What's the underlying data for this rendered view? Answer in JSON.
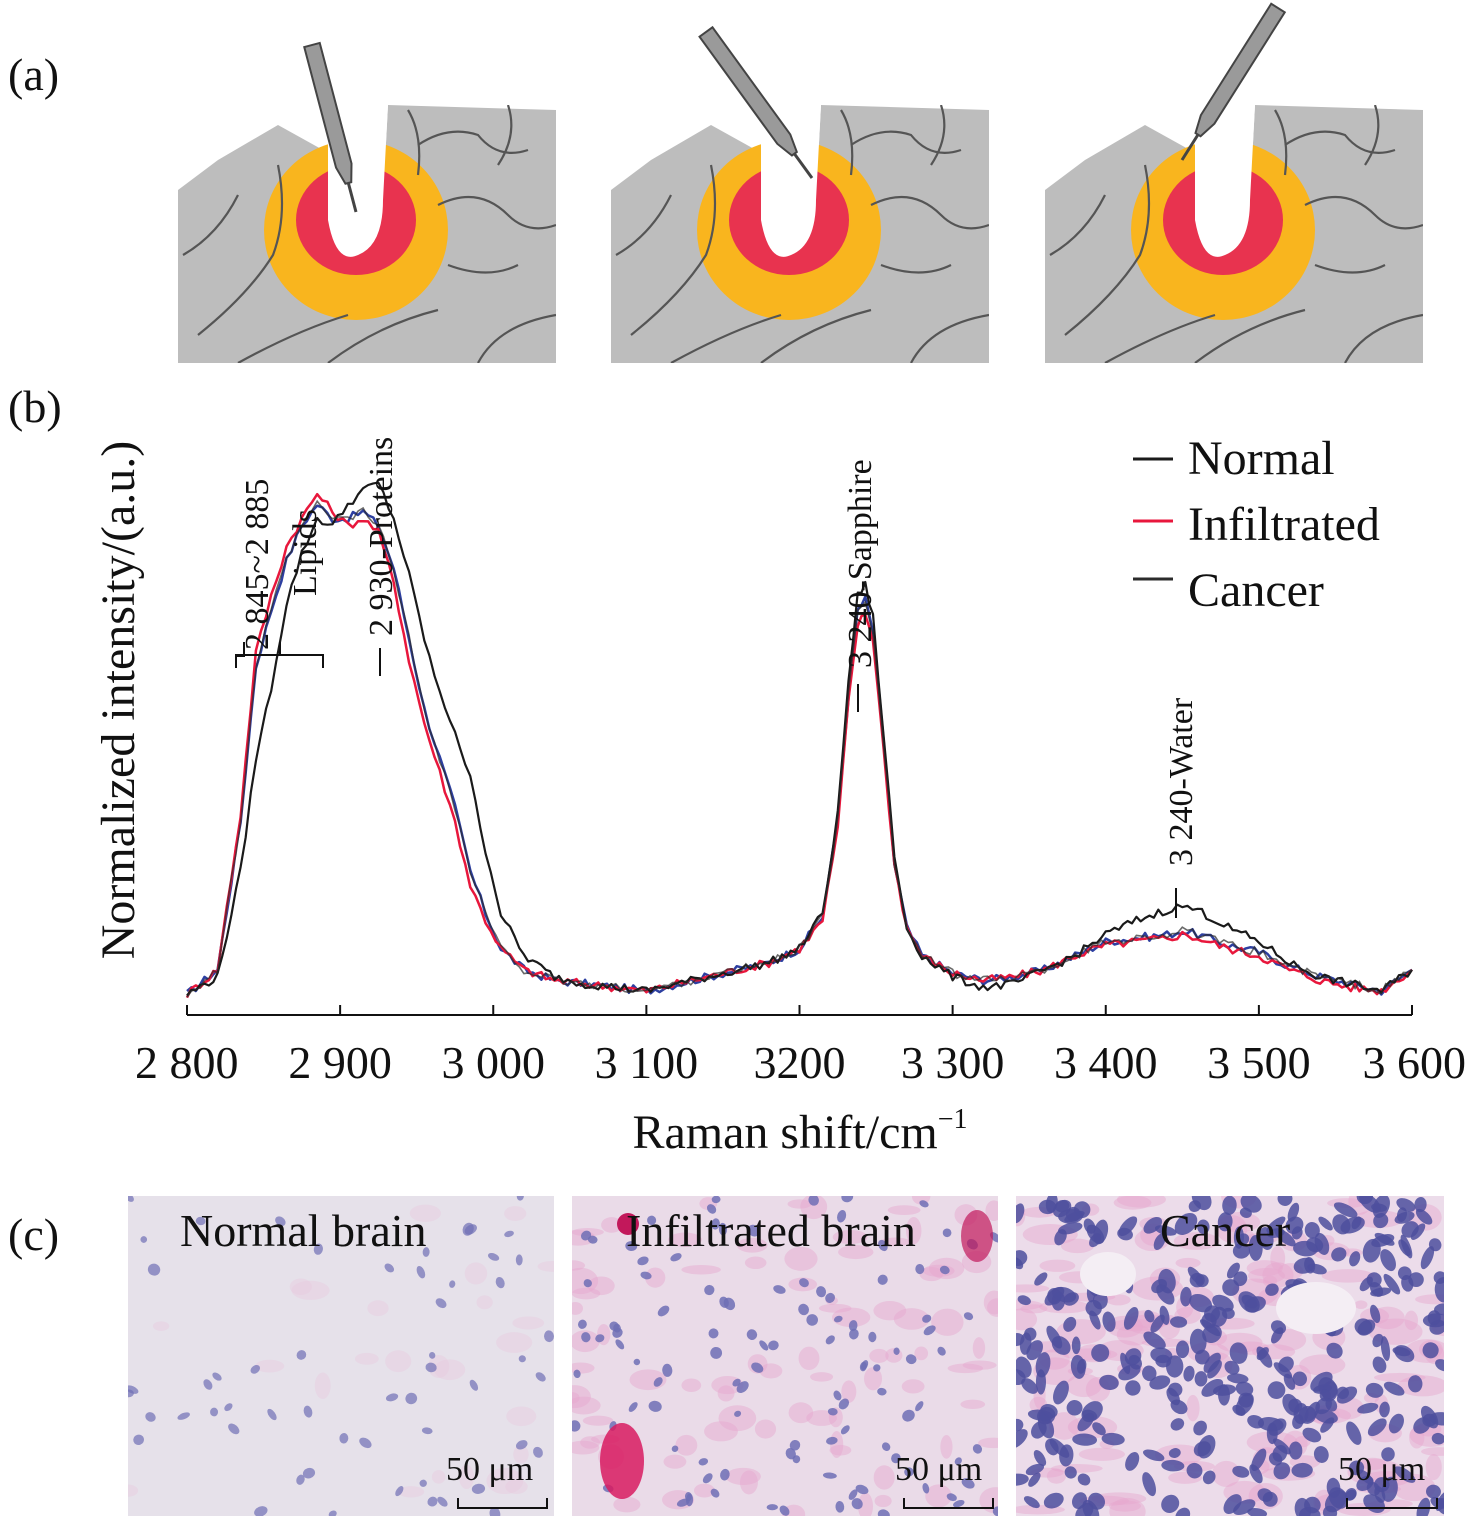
{
  "panels": {
    "a": {
      "label": "(a)"
    },
    "b": {
      "label": "(b)"
    },
    "c": {
      "label": "(c)",
      "images": [
        {
          "title": "Normal brain",
          "scale": "50 μm"
        },
        {
          "title": "Infiltrated brain",
          "scale": "50 μm"
        },
        {
          "title": "Cancer",
          "scale": "50 μm"
        }
      ]
    }
  },
  "colors": {
    "tissue": "#bdbdbd",
    "tumor_core": "#e8334f",
    "tumor_margin": "#f9b51e",
    "normal": "#1a1a1a",
    "infiltrated": "#e8173c",
    "cancer": "#2b2b2b",
    "cancer_alt": "#2d3fa0"
  },
  "chart_data": {
    "type": "line",
    "xlabel": "Raman shift/cm",
    "xlabel_sup": "−1",
    "ylabel": "Normalized intensity/(a.u.)",
    "xlim": [
      2800,
      3600
    ],
    "ylim": [
      0,
      1
    ],
    "x_ticks": [
      {
        "value": 2800,
        "label": "2 800"
      },
      {
        "value": 2900,
        "label": "2 900"
      },
      {
        "value": 3000,
        "label": "3 000"
      },
      {
        "value": 3100,
        "label": "3 100"
      },
      {
        "value": 3200,
        "label": "3200"
      },
      {
        "value": 3300,
        "label": "3 300"
      },
      {
        "value": 3400,
        "label": "3 400"
      },
      {
        "value": 3500,
        "label": "3 500"
      },
      {
        "value": 3600,
        "label": "3 600"
      }
    ],
    "legend_position": "top-right",
    "annotations": [
      {
        "text": "2 845~2 885",
        "x": 2865
      },
      {
        "text": "Lipids",
        "x": 2865
      },
      {
        "text": "2 930-Proteins",
        "x": 2925
      },
      {
        "text": "3 240-Sapphire",
        "x": 3245
      },
      {
        "text": "3 240-Water",
        "x": 3448
      }
    ],
    "series": [
      {
        "name": "Normal",
        "x": [
          2800,
          2820,
          2835,
          2845,
          2855,
          2865,
          2875,
          2885,
          2895,
          2905,
          2915,
          2925,
          2935,
          2945,
          2955,
          2965,
          2975,
          2985,
          2995,
          3005,
          3020,
          3040,
          3060,
          3080,
          3100,
          3120,
          3150,
          3180,
          3200,
          3215,
          3225,
          3232,
          3238,
          3243,
          3248,
          3255,
          3262,
          3270,
          3280,
          3300,
          3320,
          3340,
          3360,
          3380,
          3400,
          3420,
          3440,
          3450,
          3460,
          3480,
          3500,
          3520,
          3540,
          3560,
          3580,
          3600
        ],
        "y": [
          0.015,
          0.04,
          0.19,
          0.35,
          0.45,
          0.57,
          0.64,
          0.69,
          0.68,
          0.71,
          0.73,
          0.74,
          0.69,
          0.61,
          0.52,
          0.44,
          0.39,
          0.32,
          0.22,
          0.13,
          0.07,
          0.04,
          0.03,
          0.025,
          0.02,
          0.03,
          0.045,
          0.06,
          0.08,
          0.13,
          0.27,
          0.46,
          0.58,
          0.595,
          0.55,
          0.38,
          0.21,
          0.11,
          0.07,
          0.04,
          0.025,
          0.03,
          0.05,
          0.07,
          0.1,
          0.12,
          0.135,
          0.14,
          0.135,
          0.11,
          0.09,
          0.06,
          0.04,
          0.03,
          0.02,
          0.05
        ]
      },
      {
        "name": "Infiltrated",
        "x": [
          2800,
          2820,
          2835,
          2845,
          2855,
          2865,
          2875,
          2885,
          2895,
          2905,
          2915,
          2925,
          2935,
          2945,
          2955,
          2965,
          2975,
          2985,
          2995,
          3005,
          3020,
          3040,
          3060,
          3080,
          3100,
          3120,
          3150,
          3180,
          3200,
          3215,
          3225,
          3232,
          3238,
          3243,
          3248,
          3255,
          3262,
          3270,
          3280,
          3300,
          3320,
          3340,
          3360,
          3380,
          3400,
          3420,
          3440,
          3450,
          3460,
          3480,
          3500,
          3520,
          3540,
          3560,
          3580,
          3600
        ],
        "y": [
          0.015,
          0.05,
          0.27,
          0.5,
          0.58,
          0.65,
          0.69,
          0.725,
          0.7,
          0.68,
          0.69,
          0.67,
          0.6,
          0.49,
          0.4,
          0.33,
          0.26,
          0.17,
          0.12,
          0.08,
          0.05,
          0.035,
          0.03,
          0.025,
          0.02,
          0.03,
          0.045,
          0.06,
          0.08,
          0.12,
          0.25,
          0.43,
          0.54,
          0.555,
          0.52,
          0.36,
          0.2,
          0.11,
          0.07,
          0.045,
          0.035,
          0.04,
          0.05,
          0.07,
          0.085,
          0.09,
          0.095,
          0.1,
          0.095,
          0.08,
          0.07,
          0.05,
          0.035,
          0.025,
          0.02,
          0.05
        ]
      },
      {
        "name": "Cancer",
        "x": [
          2800,
          2820,
          2835,
          2845,
          2855,
          2865,
          2875,
          2885,
          2895,
          2905,
          2915,
          2925,
          2935,
          2945,
          2955,
          2965,
          2975,
          2985,
          2995,
          3005,
          3020,
          3040,
          3060,
          3080,
          3100,
          3120,
          3150,
          3180,
          3200,
          3215,
          3225,
          3232,
          3238,
          3243,
          3248,
          3255,
          3262,
          3270,
          3280,
          3300,
          3320,
          3340,
          3360,
          3380,
          3400,
          3420,
          3440,
          3450,
          3460,
          3480,
          3500,
          3520,
          3540,
          3560,
          3580,
          3600
        ],
        "y": [
          0.015,
          0.05,
          0.26,
          0.48,
          0.56,
          0.63,
          0.68,
          0.71,
          0.69,
          0.69,
          0.7,
          0.68,
          0.62,
          0.52,
          0.42,
          0.35,
          0.28,
          0.19,
          0.13,
          0.08,
          0.05,
          0.035,
          0.03,
          0.025,
          0.02,
          0.03,
          0.045,
          0.06,
          0.08,
          0.125,
          0.26,
          0.44,
          0.56,
          0.575,
          0.53,
          0.37,
          0.2,
          0.11,
          0.07,
          0.045,
          0.035,
          0.04,
          0.05,
          0.07,
          0.09,
          0.095,
          0.1,
          0.105,
          0.1,
          0.085,
          0.075,
          0.055,
          0.04,
          0.03,
          0.02,
          0.05
        ]
      }
    ]
  }
}
